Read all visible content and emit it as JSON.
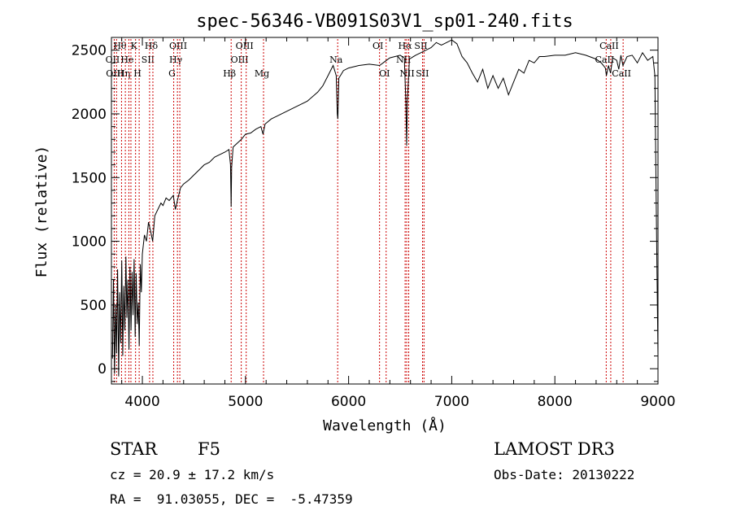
{
  "chart_data": {
    "type": "line",
    "title": "spec-56346-VB091S03V1_sp01-240.fits",
    "xlabel": "Wavelength (Å)",
    "ylabel": "Flux (relative)",
    "xlim": [
      3700,
      9000
    ],
    "ylim": [
      -120,
      2600
    ],
    "x_ticks": [
      4000,
      5000,
      6000,
      7000,
      8000,
      9000
    ],
    "y_ticks": [
      0,
      500,
      1000,
      1500,
      2000,
      2500
    ],
    "grid": false,
    "line_color": "#000000",
    "marker_color": "#cc0000",
    "series": [
      {
        "points": [
          [
            3710,
            80
          ],
          [
            3720,
            700
          ],
          [
            3730,
            -40
          ],
          [
            3740,
            500
          ],
          [
            3750,
            120
          ],
          [
            3760,
            780
          ],
          [
            3770,
            -60
          ],
          [
            3780,
            600
          ],
          [
            3790,
            200
          ],
          [
            3800,
            850
          ],
          [
            3810,
            100
          ],
          [
            3820,
            650
          ],
          [
            3830,
            300
          ],
          [
            3840,
            880
          ],
          [
            3850,
            400
          ],
          [
            3860,
            700
          ],
          [
            3870,
            150
          ],
          [
            3880,
            800
          ],
          [
            3890,
            300
          ],
          [
            3900,
            760
          ],
          [
            3910,
            420
          ],
          [
            3920,
            860
          ],
          [
            3930,
            250
          ],
          [
            3940,
            750
          ],
          [
            3950,
            350
          ],
          [
            3960,
            520
          ],
          [
            3970,
            180
          ],
          [
            3980,
            820
          ],
          [
            3990,
            600
          ],
          [
            4000,
            900
          ],
          [
            4020,
            1050
          ],
          [
            4040,
            1000
          ],
          [
            4060,
            1150
          ],
          [
            4080,
            1080
          ],
          [
            4100,
            1000
          ],
          [
            4120,
            1200
          ],
          [
            4150,
            1250
          ],
          [
            4180,
            1300
          ],
          [
            4200,
            1280
          ],
          [
            4230,
            1340
          ],
          [
            4260,
            1320
          ],
          [
            4300,
            1360
          ],
          [
            4320,
            1250
          ],
          [
            4340,
            1320
          ],
          [
            4370,
            1420
          ],
          [
            4400,
            1450
          ],
          [
            4450,
            1480
          ],
          [
            4500,
            1520
          ],
          [
            4550,
            1560
          ],
          [
            4600,
            1600
          ],
          [
            4650,
            1620
          ],
          [
            4700,
            1660
          ],
          [
            4750,
            1680
          ],
          [
            4800,
            1700
          ],
          [
            4840,
            1720
          ],
          [
            4855,
            1600
          ],
          [
            4861,
            1270
          ],
          [
            4866,
            1580
          ],
          [
            4880,
            1740
          ],
          [
            4920,
            1770
          ],
          [
            4960,
            1800
          ],
          [
            5000,
            1840
          ],
          [
            5050,
            1850
          ],
          [
            5100,
            1880
          ],
          [
            5150,
            1900
          ],
          [
            5170,
            1840
          ],
          [
            5190,
            1920
          ],
          [
            5250,
            1960
          ],
          [
            5300,
            1980
          ],
          [
            5400,
            2020
          ],
          [
            5500,
            2060
          ],
          [
            5600,
            2100
          ],
          [
            5700,
            2170
          ],
          [
            5750,
            2220
          ],
          [
            5800,
            2300
          ],
          [
            5850,
            2380
          ],
          [
            5880,
            2300
          ],
          [
            5890,
            2000
          ],
          [
            5896,
            1960
          ],
          [
            5905,
            2280
          ],
          [
            5950,
            2340
          ],
          [
            6000,
            2360
          ],
          [
            6100,
            2380
          ],
          [
            6200,
            2390
          ],
          [
            6300,
            2380
          ],
          [
            6350,
            2410
          ],
          [
            6400,
            2440
          ],
          [
            6500,
            2460
          ],
          [
            6540,
            2440
          ],
          [
            6555,
            2100
          ],
          [
            6563,
            1750
          ],
          [
            6570,
            2100
          ],
          [
            6590,
            2430
          ],
          [
            6650,
            2460
          ],
          [
            6700,
            2480
          ],
          [
            6800,
            2520
          ],
          [
            6850,
            2560
          ],
          [
            6900,
            2540
          ],
          [
            6950,
            2560
          ],
          [
            7000,
            2580
          ],
          [
            7050,
            2550
          ],
          [
            7100,
            2450
          ],
          [
            7150,
            2400
          ],
          [
            7200,
            2320
          ],
          [
            7250,
            2250
          ],
          [
            7300,
            2350
          ],
          [
            7350,
            2200
          ],
          [
            7400,
            2300
          ],
          [
            7450,
            2200
          ],
          [
            7500,
            2280
          ],
          [
            7550,
            2150
          ],
          [
            7600,
            2250
          ],
          [
            7650,
            2350
          ],
          [
            7700,
            2320
          ],
          [
            7750,
            2420
          ],
          [
            7800,
            2400
          ],
          [
            7850,
            2450
          ],
          [
            7900,
            2450
          ],
          [
            8000,
            2460
          ],
          [
            8100,
            2460
          ],
          [
            8200,
            2480
          ],
          [
            8300,
            2460
          ],
          [
            8400,
            2430
          ],
          [
            8450,
            2400
          ],
          [
            8490,
            2360
          ],
          [
            8500,
            2300
          ],
          [
            8520,
            2380
          ],
          [
            8540,
            2320
          ],
          [
            8560,
            2440
          ],
          [
            8600,
            2420
          ],
          [
            8620,
            2350
          ],
          [
            8640,
            2460
          ],
          [
            8660,
            2380
          ],
          [
            8700,
            2450
          ],
          [
            8750,
            2460
          ],
          [
            8800,
            2400
          ],
          [
            8850,
            2480
          ],
          [
            8900,
            2420
          ],
          [
            8950,
            2450
          ],
          [
            8970,
            2300
          ],
          [
            8980,
            1500
          ],
          [
            8990,
            800
          ],
          [
            9000,
            100
          ]
        ]
      }
    ],
    "line_markers": [
      {
        "x": 3727,
        "label": "OII",
        "row": 1
      },
      {
        "x": 3750,
        "label": "OIII",
        "row": 2
      },
      {
        "x": 3798,
        "label": "Hθ",
        "row": 0
      },
      {
        "x": 3835,
        "label": "Hη",
        "row": 2
      },
      {
        "x": 3869,
        "label": "He",
        "row": 1
      },
      {
        "x": 3889,
        "label": "",
        "row": 0
      },
      {
        "x": 3934,
        "label": "K",
        "row": 0
      },
      {
        "x": 3969,
        "label": "H",
        "row": 2
      },
      {
        "x": 4070,
        "label": "SII",
        "row": 1
      },
      {
        "x": 4102,
        "label": "Hδ",
        "row": 0
      },
      {
        "x": 4304,
        "label": "G",
        "row": 2
      },
      {
        "x": 4340,
        "label": "Hγ",
        "row": 1
      },
      {
        "x": 4363,
        "label": "OIII",
        "row": 0
      },
      {
        "x": 4861,
        "label": "Hβ",
        "row": 2
      },
      {
        "x": 4959,
        "label": "OIII",
        "row": 1
      },
      {
        "x": 5007,
        "label": "OIII",
        "row": 0
      },
      {
        "x": 5175,
        "label": "Mg",
        "row": 2
      },
      {
        "x": 5894,
        "label": "Na",
        "row": 1
      },
      {
        "x": 6300,
        "label": "OI",
        "row": 0
      },
      {
        "x": 6364,
        "label": "OI",
        "row": 2
      },
      {
        "x": 6548,
        "label": "NII",
        "row": 1
      },
      {
        "x": 6563,
        "label": "Hα",
        "row": 0
      },
      {
        "x": 6583,
        "label": "NII",
        "row": 2
      },
      {
        "x": 6717,
        "label": "SII",
        "row": 0
      },
      {
        "x": 6731,
        "label": "SII",
        "row": 2
      },
      {
        "x": 8498,
        "label": "CaII",
        "row": 1
      },
      {
        "x": 8542,
        "label": "CaII",
        "row": 0
      },
      {
        "x": 8662,
        "label": "CaII",
        "row": 2
      }
    ]
  },
  "info": {
    "object_class": "STAR",
    "subclass": "F5",
    "survey": "LAMOST DR3",
    "redshift_line": "cz = 20.9 ± 17.2 km/s",
    "obs_date_line": "Obs-Date: 20130222",
    "coords_line": "RA =  91.03055, DEC =  -5.47359"
  }
}
